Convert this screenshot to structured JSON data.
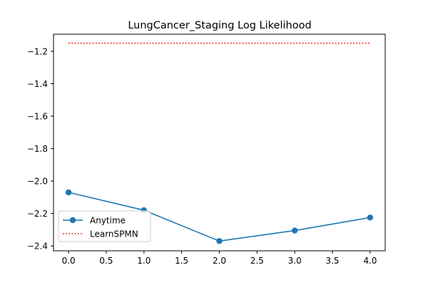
{
  "chart_data": {
    "type": "line",
    "title": "LungCancer_Staging Log Likelihood",
    "xlabel": "",
    "ylabel": "",
    "xlim": [
      -0.2,
      4.2
    ],
    "ylim": [
      -2.43,
      -1.095
    ],
    "xticks": [
      0.0,
      0.5,
      1.0,
      1.5,
      2.0,
      2.5,
      3.0,
      3.5,
      4.0
    ],
    "xtick_labels": [
      "0.0",
      "0.5",
      "1.0",
      "1.5",
      "2.0",
      "2.5",
      "3.0",
      "3.5",
      "4.0"
    ],
    "yticks": [
      -1.2,
      -1.4,
      -1.6,
      -1.8,
      -2.0,
      -2.2,
      -2.4
    ],
    "ytick_labels": [
      "−1.2",
      "−1.4",
      "−1.6",
      "−1.8",
      "−2.0",
      "−2.2",
      "−2.4"
    ],
    "series": [
      {
        "name": "Anytime",
        "color": "#1f77b4",
        "style": "solid",
        "marker": "circle",
        "x": [
          0,
          1,
          2,
          3,
          4
        ],
        "y": [
          -2.07,
          -2.18,
          -2.37,
          -2.305,
          -2.225
        ]
      },
      {
        "name": "LearnSPMN",
        "color": "#ff0000",
        "style": "dotted",
        "marker": "none",
        "x": [
          0,
          4
        ],
        "y": [
          -1.15,
          -1.15
        ]
      }
    ],
    "legend": {
      "position": "lower-left"
    },
    "grid": false
  }
}
